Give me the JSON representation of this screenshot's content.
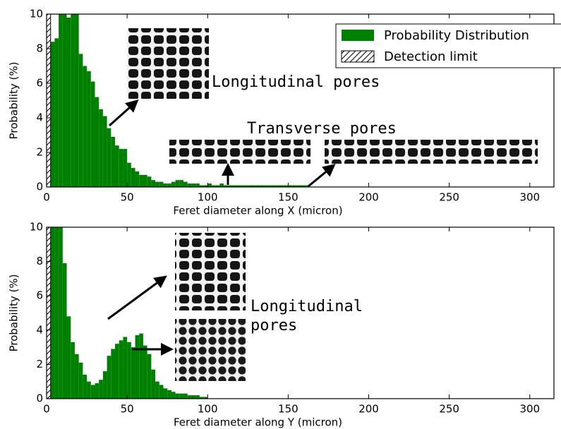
{
  "chart_data": [
    {
      "type": "histogram",
      "xlabel": "Feret diameter along X (micron)",
      "ylabel": "Probability (%)",
      "name": "Probability Distribution",
      "color": "#008000",
      "bins": [
        2.5,
        5,
        7.5,
        10,
        12.5,
        15,
        17.5,
        20,
        22.5,
        25,
        27.5,
        30,
        32.5,
        35,
        37.5,
        40,
        42.5,
        45,
        47.5,
        50,
        52.5,
        55,
        57.5,
        60,
        62.5,
        65,
        67.5,
        70,
        72.5,
        75,
        77.5,
        80,
        82.5,
        85,
        87.5,
        90,
        92.5,
        95,
        97.5,
        100,
        102.5,
        105,
        107.5,
        110,
        112.5,
        115,
        117.5,
        120,
        122.5,
        125,
        127.5,
        130,
        132.5,
        135,
        137.5,
        140,
        142.5,
        145,
        147.5,
        150,
        152.5,
        155,
        157.5,
        160,
        162.5
      ],
      "values": [
        8.4,
        8.6,
        10,
        10,
        9.8,
        10,
        10,
        7.7,
        7.0,
        6.7,
        6.1,
        5.2,
        4.5,
        4.1,
        3.4,
        2.9,
        2.4,
        2.2,
        2.2,
        1.4,
        1.1,
        0.9,
        0.7,
        0.7,
        0.6,
        0.4,
        0.3,
        0.3,
        0.2,
        0.2,
        0.3,
        0.4,
        0.4,
        0.3,
        0.2,
        0.2,
        0.2,
        0.1,
        0.1,
        0.2,
        0.1,
        0.1,
        0.2,
        0.1,
        0.1,
        0.1,
        0.1,
        0.1,
        0.1,
        0.1,
        0.1,
        0.1,
        0.1,
        0.1,
        0.1,
        0.1,
        0.1,
        0.1,
        0.1,
        0.1,
        0.1,
        0.1,
        0.1,
        0.1
      ],
      "detection_limit": {
        "name": "Detection limit",
        "range": [
          0,
          2.5
        ]
      },
      "xlim": [
        0,
        315
      ],
      "ylim": [
        0,
        10
      ],
      "xticks": [
        0,
        50,
        100,
        150,
        200,
        250,
        300
      ],
      "yticks": [
        0,
        2,
        4,
        6,
        8,
        10
      ],
      "legend": "upper right",
      "annotations": [
        "Longitudinal pores",
        "Transverse pores"
      ]
    },
    {
      "type": "histogram",
      "xlabel": "Feret diameter along Y (micron)",
      "ylabel": "Probability (%)",
      "color": "#008000",
      "bins": [
        0,
        2.5,
        5,
        7.5,
        10,
        12.5,
        15,
        17.5,
        20,
        22.5,
        25,
        27.5,
        30,
        32.5,
        35,
        37.5,
        40,
        42.5,
        45,
        47.5,
        50,
        52.5,
        55,
        57.5,
        60,
        62.5,
        65,
        67.5,
        70,
        72.5,
        75,
        77.5,
        80,
        82.5,
        85,
        87.5,
        90,
        92.5,
        95,
        97.5,
        100
      ],
      "values": [
        2.2,
        10,
        10,
        10,
        7.9,
        4.8,
        3.3,
        2.6,
        2.1,
        1.4,
        1.0,
        0.8,
        0.9,
        1.1,
        1.6,
        2.5,
        2.9,
        3.2,
        3.4,
        3.6,
        3.3,
        3.0,
        3.7,
        3.8,
        3.1,
        2.6,
        1.7,
        1.0,
        0.8,
        0.6,
        0.5,
        0.4,
        0.3,
        0.3,
        0.3,
        0.2,
        0.2,
        0.2,
        0.1,
        0.1
      ],
      "detection_limit": {
        "range": [
          0,
          2.5
        ]
      },
      "xlim": [
        0,
        315
      ],
      "ylim": [
        0,
        10
      ],
      "xticks": [
        0,
        50,
        100,
        150,
        200,
        250,
        300
      ],
      "yticks": [
        0,
        2,
        4,
        6,
        8,
        10
      ],
      "annotations": [
        "Longitudinal",
        "pores"
      ]
    }
  ]
}
